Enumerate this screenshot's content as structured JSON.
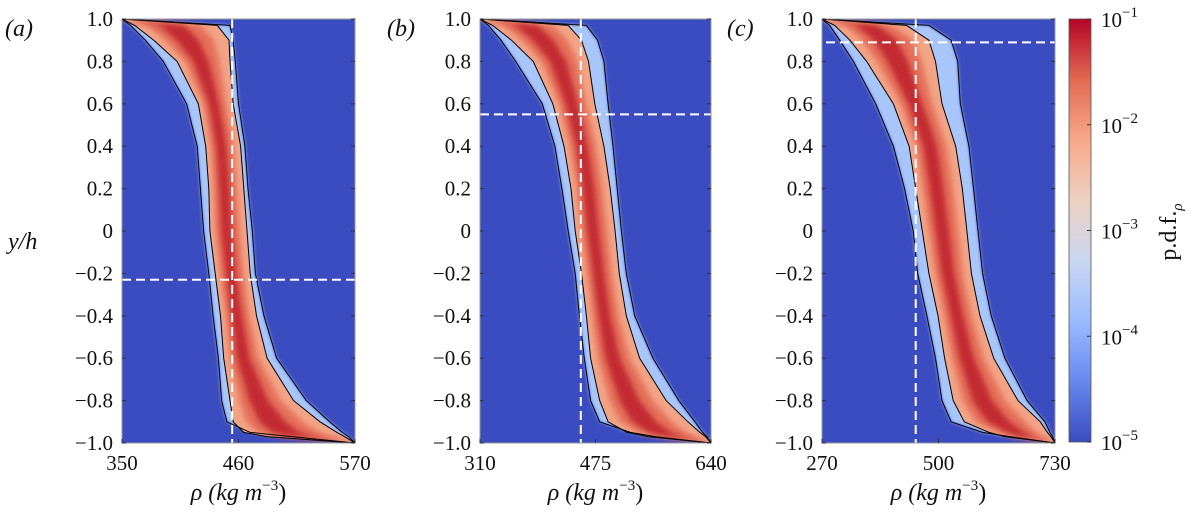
{
  "chart_data": [
    {
      "type": "heatmap",
      "panel_label": "(a)",
      "ylabel": "y/h",
      "xlabel": {
        "base": "ρ (kg m",
        "sup": "−3",
        "close": ")"
      },
      "xlim": [
        350,
        570
      ],
      "xticks": [
        "350",
        "460",
        "570"
      ],
      "ylim": [
        -1.0,
        1.0
      ],
      "yticks": [
        "1.0",
        "0.8",
        "0.6",
        "0.4",
        "0.2",
        "0",
        "−0.2",
        "−0.4",
        "−0.6",
        "−0.8",
        "−1.0"
      ],
      "reference_lines": {
        "x": 454,
        "y": -0.23
      },
      "contours": {
        "y": [
          1.0,
          0.97,
          0.9,
          0.8,
          0.6,
          0.4,
          0.2,
          0,
          -0.2,
          -0.4,
          -0.6,
          -0.8,
          -0.9,
          -0.95,
          -0.97,
          -1.0
        ],
        "outer_left": [
          350,
          358,
          372,
          389,
          411,
          421,
          424,
          427,
          432,
          436,
          441,
          444,
          449,
          471,
          510,
          570
        ],
        "inner_left": [
          350,
          362,
          380,
          402,
          422,
          429,
          432,
          433,
          438,
          443,
          446,
          452,
          455,
          465,
          487,
          570
        ],
        "inner_right": [
          350,
          440,
          451,
          452,
          455,
          462,
          465,
          468,
          471,
          477,
          487,
          512,
          537,
          553,
          560,
          570
        ],
        "outer_right": [
          350,
          452,
          455,
          457,
          460,
          466,
          469,
          473,
          476,
          484,
          496,
          524,
          546,
          558,
          564,
          570
        ]
      }
    },
    {
      "type": "heatmap",
      "panel_label": "(b)",
      "xlabel": {
        "base": "ρ (kg m",
        "sup": "−3",
        "close": ")"
      },
      "xlim": [
        310,
        640
      ],
      "xticks": [
        "310",
        "475",
        "640"
      ],
      "ylim": [
        -1.0,
        1.0
      ],
      "yticks": [
        "1.0",
        "0.8",
        "0.6",
        "0.4",
        "0.2",
        "0",
        "−0.2",
        "−0.4",
        "−0.6",
        "−0.8",
        "−1.0"
      ],
      "reference_lines": {
        "x": 454,
        "y": 0.55
      },
      "contours": {
        "y": [
          1.0,
          0.97,
          0.9,
          0.8,
          0.6,
          0.4,
          0.2,
          0,
          -0.2,
          -0.4,
          -0.6,
          -0.8,
          -0.9,
          -0.95,
          -0.97,
          -1.0
        ],
        "outer_left": [
          310,
          322,
          340,
          361,
          399,
          417,
          427,
          436,
          446,
          452,
          459,
          468,
          481,
          525,
          560,
          640
        ],
        "inner_left": [
          310,
          328,
          355,
          386,
          414,
          430,
          440,
          446,
          455,
          462,
          468,
          481,
          493,
          520,
          550,
          640
        ],
        "inner_right": [
          310,
          436,
          455,
          465,
          474,
          487,
          496,
          503,
          509,
          519,
          538,
          576,
          607,
          624,
          632,
          640
        ],
        "outer_right": [
          310,
          462,
          478,
          487,
          493,
          500,
          506,
          512,
          519,
          531,
          557,
          594,
          617,
          628,
          634,
          640
        ]
      }
    },
    {
      "type": "heatmap",
      "panel_label": "(c)",
      "xlabel": {
        "base": "ρ (kg m",
        "sup": "−3",
        "close": ")"
      },
      "xlim": [
        270,
        730
      ],
      "xticks": [
        "270",
        "500",
        "730"
      ],
      "ylim": [
        -1.0,
        1.0
      ],
      "yticks": [
        "1.0",
        "0.8",
        "0.6",
        "0.4",
        "0.2",
        "0",
        "−0.2",
        "−0.4",
        "−0.6",
        "−0.8",
        "−1.0"
      ],
      "reference_lines": {
        "x": 455,
        "y": 0.89
      },
      "contours": {
        "y": [
          1.0,
          0.97,
          0.9,
          0.8,
          0.6,
          0.4,
          0.2,
          0,
          -0.2,
          -0.4,
          -0.6,
          -0.8,
          -0.9,
          -0.95,
          -0.97,
          -1.0
        ],
        "outer_left": [
          270,
          285,
          305,
          332,
          376,
          411,
          433,
          450,
          459,
          477,
          494,
          507,
          525,
          587,
          640,
          730
        ],
        "inner_left": [
          270,
          295,
          325,
          358,
          411,
          442,
          455,
          468,
          481,
          499,
          512,
          529,
          551,
          600,
          631,
          730
        ],
        "inner_right": [
          270,
          437,
          481,
          494,
          507,
          534,
          547,
          556,
          565,
          582,
          609,
          657,
          701,
          715,
          722,
          730
        ],
        "outer_right": [
          270,
          481,
          525,
          538,
          543,
          560,
          569,
          578,
          587,
          604,
          631,
          675,
          710,
          720,
          725,
          730
        ]
      }
    }
  ],
  "colorbar": {
    "label": {
      "base": "p.d.f.",
      "sub": "ρ"
    },
    "scale": "log",
    "range": [
      1e-05,
      0.1
    ],
    "colormap": "coolwarm",
    "colors": [
      "#3b4cc0",
      "#6788ee",
      "#9abbff",
      "#c9d7f0",
      "#edd1c2",
      "#f7a889",
      "#e26952",
      "#b40426"
    ],
    "ticks": [
      {
        "base": "10",
        "exp": "−1"
      },
      {
        "base": "10",
        "exp": "−2"
      },
      {
        "base": "10",
        "exp": "−3"
      },
      {
        "base": "10",
        "exp": "−4"
      },
      {
        "base": "10",
        "exp": "−5"
      }
    ]
  },
  "colors": {
    "background": "#3b4cc0",
    "outer_band": "#a9c6fb",
    "inner_band": "#f2a486",
    "mid_band": "#e5705a",
    "ridge": "#c32a30",
    "reference_line": "#ffffff",
    "contour": "#000000"
  }
}
